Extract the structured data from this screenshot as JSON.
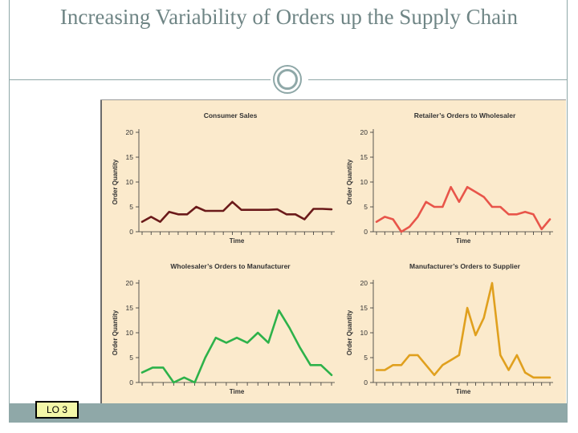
{
  "slide": {
    "title": "Increasing Variability of Orders up the Supply Chain",
    "badge": "LO 3"
  },
  "colors": {
    "consumer": "#6b1a1a",
    "retailer": "#e8554a",
    "wholesaler": "#2db24a",
    "manufacturer": "#e0a01e",
    "figure_bg": "#fbeacc",
    "accent": "#8fa8a8"
  },
  "chart_data": [
    {
      "type": "line",
      "title": "Consumer Sales",
      "xlabel": "Time",
      "ylabel": "Order Quantity",
      "ylim": [
        0,
        20
      ],
      "yticks": [
        0,
        5,
        10,
        15,
        20
      ],
      "x": [
        0,
        1,
        2,
        3,
        4,
        5,
        6,
        7,
        8,
        9,
        10,
        11,
        12,
        13,
        14,
        15,
        16,
        17,
        18,
        19,
        20,
        21
      ],
      "series": [
        {
          "name": "Consumer Sales",
          "color": "#6b1a1a",
          "values": [
            2,
            3,
            2,
            4,
            3.5,
            3.5,
            5,
            4.2,
            4.2,
            4.2,
            6,
            4.4,
            4.4,
            4.4,
            4.4,
            4.5,
            3.5,
            3.5,
            2.5,
            4.6,
            4.6,
            4.5
          ]
        }
      ]
    },
    {
      "type": "line",
      "title": "Retailer’s Orders to Wholesaler",
      "xlabel": "Time",
      "ylabel": "Order Quantity",
      "ylim": [
        0,
        20
      ],
      "yticks": [
        0,
        5,
        10,
        15,
        20
      ],
      "x": [
        0,
        1,
        2,
        3,
        4,
        5,
        6,
        7,
        8,
        9,
        10,
        11,
        12,
        13,
        14,
        15,
        16,
        17,
        18,
        19,
        20,
        21
      ],
      "series": [
        {
          "name": "Retailer’s Orders",
          "color": "#e8554a",
          "values": [
            2,
            3,
            2.5,
            0,
            1,
            3,
            6,
            5,
            5,
            9,
            6,
            9,
            8,
            7,
            5,
            5,
            3.5,
            3.5,
            4,
            3.5,
            0.5,
            2.5
          ]
        }
      ]
    },
    {
      "type": "line",
      "title": "Wholesaler’s Orders to Manufacturer",
      "xlabel": "Time",
      "ylabel": "Order Quantity",
      "ylim": [
        0,
        20
      ],
      "yticks": [
        0,
        5,
        10,
        15,
        20
      ],
      "x": [
        0,
        1,
        2,
        3,
        4,
        5,
        6,
        7,
        8,
        9,
        10,
        11,
        12,
        13,
        14,
        15,
        16,
        17,
        18
      ],
      "series": [
        {
          "name": "Wholesaler’s Orders",
          "color": "#2db24a",
          "values": [
            2,
            3,
            3,
            0,
            1,
            0,
            5,
            9,
            8,
            9,
            8,
            10,
            8,
            14.5,
            11,
            7,
            3.5,
            3.5,
            1.5
          ]
        }
      ]
    },
    {
      "type": "line",
      "title": "Manufacturer’s Orders to Supplier",
      "xlabel": "Time",
      "ylabel": "Order Quantity",
      "ylim": [
        0,
        20
      ],
      "yticks": [
        0,
        5,
        10,
        15,
        20
      ],
      "x": [
        0,
        1,
        2,
        3,
        4,
        5,
        6,
        7,
        8,
        9,
        10,
        11,
        12,
        13,
        14,
        15,
        16,
        17,
        18,
        19,
        20,
        21
      ],
      "series": [
        {
          "name": "Manufacturer’s Orders",
          "color": "#e0a01e",
          "values": [
            2.5,
            2.5,
            3.5,
            3.5,
            5.5,
            5.5,
            3.5,
            1.5,
            3.5,
            4.5,
            5.5,
            15,
            9.5,
            13,
            20,
            5.5,
            2.5,
            5.5,
            2,
            1,
            1,
            1
          ]
        }
      ]
    }
  ]
}
